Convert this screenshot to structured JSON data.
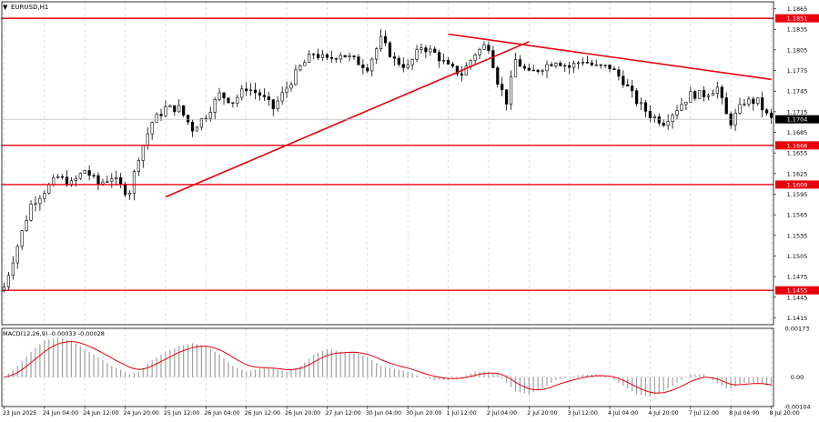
{
  "symbol_label": "EURUSD,H1",
  "indicator_label": "MACD(12,26,9) -0.00033 -0.00028",
  "colors": {
    "background": "#ffffff",
    "grid": "#c8c8c8",
    "candles": "#000000",
    "levels": "#e8000b",
    "trendlines": "#e8000b",
    "macd_hist": "#a0a0a0",
    "macd_signal": "#e8000b",
    "current_price_bg": "#000000",
    "level_tag_bg": "#e8000b"
  },
  "chart_data": [
    {
      "type": "candlestick",
      "title": "EURUSD,H1",
      "ylim": [
        1.1405,
        1.1875
      ],
      "y_ticks": [
        "1.1865",
        "1.1835",
        "1.1805",
        "1.1775",
        "1.1745",
        "1.1715",
        "1.1685",
        "1.1655",
        "1.1625",
        "1.1595",
        "1.1565",
        "1.1535",
        "1.1505",
        "1.1475",
        "1.1445",
        "1.1415"
      ],
      "x_ticks": [
        "23 Jun 2025",
        "24 Jun 04:00",
        "24 Jun 12:00",
        "24 Jun 20:00",
        "25 Jun 12:00",
        "26 Jun 04:00",
        "26 Jun 12:00",
        "26 Jun 20:00",
        "27 Jun 12:00",
        "30 Jun 04:00",
        "30 Jun 20:00",
        "1 Jul 12:00",
        "2 Jul 04:00",
        "2 Jul 20:00",
        "3 Jul 12:00",
        "4 Jul 04:00",
        "4 Jul 20:00",
        "7 Jul 12:00",
        "8 Jul 04:00",
        "8 Jul 20:00"
      ],
      "levels": [
        {
          "price": 1.1851,
          "label": "1.1851"
        },
        {
          "price": 1.1666,
          "label": "1.1666"
        },
        {
          "price": 1.1609,
          "label": "1.1609"
        },
        {
          "price": 1.1455,
          "label": "1.1455"
        }
      ],
      "current_price": {
        "value": 1.1704,
        "label": "1.1704"
      },
      "trendlines": [
        {
          "from": [
            "25 Jun 12:00",
            1.1591
          ],
          "to": [
            "2 Jul 20:00",
            1.1817
          ]
        },
        {
          "from": [
            "1 Jul 12:00",
            1.1828
          ],
          "to": [
            "8 Jul 20:00",
            1.1762
          ]
        }
      ],
      "close_path": [
        [
          0,
          1.146
        ],
        [
          3,
          1.152
        ],
        [
          6,
          1.158
        ],
        [
          9,
          1.16
        ],
        [
          12,
          1.162
        ],
        [
          15,
          1.161
        ],
        [
          18,
          1.163
        ],
        [
          21,
          1.161
        ],
        [
          24,
          1.162
        ],
        [
          27,
          1.16
        ],
        [
          28,
          1.16
        ],
        [
          30,
          1.165
        ],
        [
          33,
          1.17
        ],
        [
          36,
          1.172
        ],
        [
          39,
          1.172
        ],
        [
          42,
          1.169
        ],
        [
          45,
          1.171
        ],
        [
          48,
          1.174
        ],
        [
          51,
          1.173
        ],
        [
          54,
          1.175
        ],
        [
          57,
          1.174
        ],
        [
          60,
          1.172
        ],
        [
          63,
          1.175
        ],
        [
          66,
          1.178
        ],
        [
          69,
          1.18
        ],
        [
          72,
          1.179
        ],
        [
          75,
          1.18
        ],
        [
          78,
          1.179
        ],
        [
          81,
          1.178
        ],
        [
          84,
          1.182
        ],
        [
          87,
          1.179
        ],
        [
          90,
          1.178
        ],
        [
          93,
          1.181
        ],
        [
          96,
          1.18
        ],
        [
          99,
          1.178
        ],
        [
          102,
          1.177
        ],
        [
          105,
          1.18
        ],
        [
          107,
          1.181
        ],
        [
          108,
          1.181
        ],
        [
          110,
          1.176
        ],
        [
          112,
          1.173
        ],
        [
          114,
          1.179
        ],
        [
          117,
          1.177
        ],
        [
          120,
          1.178
        ],
        [
          123,
          1.179
        ],
        [
          126,
          1.178
        ],
        [
          129,
          1.179
        ],
        [
          132,
          1.178
        ],
        [
          135,
          1.178
        ],
        [
          138,
          1.176
        ],
        [
          141,
          1.173
        ],
        [
          144,
          1.171
        ],
        [
          147,
          1.17
        ],
        [
          150,
          1.172
        ],
        [
          153,
          1.174
        ],
        [
          156,
          1.174
        ],
        [
          159,
          1.175
        ],
        [
          161,
          1.171
        ],
        [
          162,
          1.17
        ],
        [
          165,
          1.173
        ],
        [
          168,
          1.173
        ],
        [
          170,
          1.171
        ],
        [
          171,
          1.1704
        ]
      ]
    },
    {
      "type": "bar",
      "title": "MACD(12,26,9) -0.00033 -0.00028",
      "ylim": [
        -0.00104,
        0.00173
      ],
      "y_ticks": [
        "0.00173",
        "0.00",
        "-0.00104"
      ],
      "hist_path": [
        [
          0,
          0.0
        ],
        [
          3,
          0.0004
        ],
        [
          6,
          0.0009
        ],
        [
          9,
          0.0013
        ],
        [
          12,
          0.0014
        ],
        [
          15,
          0.0013
        ],
        [
          18,
          0.001
        ],
        [
          21,
          0.0007
        ],
        [
          24,
          0.0004
        ],
        [
          27,
          0.0002
        ],
        [
          28,
          0.0001
        ],
        [
          30,
          0.0002
        ],
        [
          33,
          0.0006
        ],
        [
          36,
          0.0009
        ],
        [
          39,
          0.0011
        ],
        [
          42,
          0.0012
        ],
        [
          45,
          0.0011
        ],
        [
          48,
          0.0008
        ],
        [
          51,
          0.0004
        ],
        [
          54,
          0.0002
        ],
        [
          57,
          0.0003
        ],
        [
          60,
          0.0003
        ],
        [
          63,
          0.0002
        ],
        [
          66,
          0.0004
        ],
        [
          69,
          0.0008
        ],
        [
          72,
          0.001
        ],
        [
          75,
          0.0009
        ],
        [
          78,
          0.0009
        ],
        [
          81,
          0.0007
        ],
        [
          84,
          0.0004
        ],
        [
          87,
          0.0003
        ],
        [
          90,
          0.0002
        ],
        [
          93,
          0.0
        ],
        [
          96,
          -0.0001
        ],
        [
          99,
          -0.0001
        ],
        [
          102,
          0.0
        ],
        [
          105,
          0.0002
        ],
        [
          107,
          0.0002
        ],
        [
          108,
          0.0002
        ],
        [
          110,
          0.0001
        ],
        [
          112,
          -0.0002
        ],
        [
          114,
          -0.0005
        ],
        [
          117,
          -0.0006
        ],
        [
          120,
          -0.0004
        ],
        [
          123,
          -0.0001
        ],
        [
          126,
          0.0
        ],
        [
          129,
          0.0001
        ],
        [
          132,
          0.0001
        ],
        [
          135,
          0.0
        ],
        [
          138,
          -0.0003
        ],
        [
          141,
          -0.0006
        ],
        [
          144,
          -0.0007
        ],
        [
          147,
          -0.0005
        ],
        [
          150,
          -0.0002
        ],
        [
          153,
          0.0001
        ],
        [
          156,
          0.0001
        ],
        [
          159,
          -0.0002
        ],
        [
          161,
          -0.0004
        ],
        [
          162,
          -0.0004
        ],
        [
          165,
          -0.0002
        ],
        [
          168,
          -0.0002
        ],
        [
          170,
          -0.0003
        ],
        [
          171,
          -0.00033
        ]
      ]
    }
  ]
}
